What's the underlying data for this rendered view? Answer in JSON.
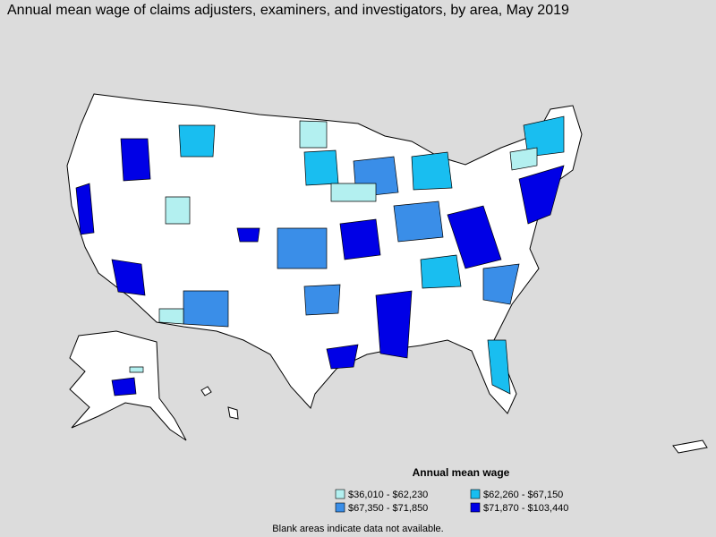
{
  "title": "Annual mean wage of claims adjusters, examiners, and investigators, by area, May 2019",
  "legend": {
    "title": "Annual mean wage",
    "items": [
      {
        "label": "$36,010 - $62,230",
        "color": "#b3f0f0"
      },
      {
        "label": "$62,260 - $67,150",
        "color": "#19bef0"
      },
      {
        "label": "$67,350 - $71,850",
        "color": "#3a8ee8"
      },
      {
        "label": "$71,870 - $103,440",
        "color": "#0000e6"
      }
    ]
  },
  "note": "Blank areas indicate data not available."
}
